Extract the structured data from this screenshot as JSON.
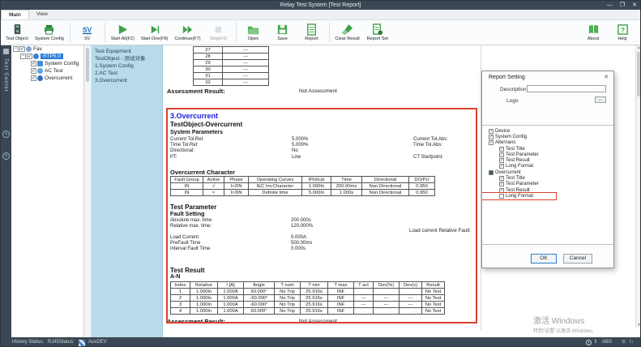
{
  "window": {
    "title": "Relay Test System  [Test Report]",
    "minimize": "—",
    "maximize": "❐",
    "close": "✕"
  },
  "ribbon": {
    "tabs": [
      {
        "label": "Main",
        "active": true
      },
      {
        "label": "View",
        "active": false
      }
    ],
    "groups": [
      [
        {
          "name": "test-object",
          "label": "Test Object"
        },
        {
          "name": "system-config",
          "label": "System Config"
        }
      ],
      [
        {
          "name": "sv",
          "label": "SV"
        }
      ],
      [
        {
          "name": "start-all",
          "label": "Start All(F2)"
        },
        {
          "name": "start-one",
          "label": "Start One(F8)"
        },
        {
          "name": "continue",
          "label": "Continue(F7)"
        },
        {
          "name": "stop",
          "label": "Stop(F6)",
          "disabled": true
        }
      ],
      [
        {
          "name": "open",
          "label": "Open"
        },
        {
          "name": "save",
          "label": "Save"
        },
        {
          "name": "report",
          "label": "Report"
        }
      ],
      [
        {
          "name": "clear-result",
          "label": "Clear Result"
        },
        {
          "name": "report-set",
          "label": "Report Set"
        }
      ]
    ],
    "right": [
      {
        "name": "about",
        "label": "About"
      },
      {
        "name": "help",
        "label": "Help"
      }
    ]
  },
  "side_strip": {
    "vertical_label": "Test Center"
  },
  "tree": {
    "root_label": "Fav",
    "project_label": "RTP5.0",
    "items": [
      "System Config",
      "AC Test",
      "Overcurrent"
    ]
  },
  "nav": {
    "items": [
      "Test Equipment",
      "TestObject - 测试对象",
      "1.System Config",
      "2.AC Test",
      "3.Overcurrent"
    ]
  },
  "report": {
    "continuation_table": {
      "rows": [
        [
          "27",
          "---"
        ],
        [
          "28",
          "---"
        ],
        [
          "29",
          "---"
        ],
        [
          "30",
          "---"
        ],
        [
          "31",
          "---"
        ],
        [
          "32",
          "---"
        ]
      ]
    },
    "assessment": {
      "label": "Assessment Result:",
      "value": "Not Assessment"
    },
    "overcurrent": {
      "heading": "3.Overcurrent",
      "subheading": "TestObject-Overcurrent",
      "system_parameters": {
        "title": "System Parameters",
        "rows": [
          {
            "label": "Current Tol.Rel:",
            "value": "5.000%",
            "label2": "Current Tol.Abs:"
          },
          {
            "label": "Time Tol.Rel:",
            "value": "5.000%",
            "label2": "Time Tol.Abs:"
          },
          {
            "label": "Directional:",
            "value": "No",
            "label2": ""
          },
          {
            "label": "PT:",
            "value": "Line",
            "label2": "CT Startpoint:"
          }
        ]
      },
      "character_table": {
        "title": "Overcurrent Character",
        "headers": [
          "Fault Group",
          "Active",
          "Phase",
          "Operating Curves",
          "IPickUp",
          "Time",
          "Directional",
          "DO/PU"
        ],
        "rows": [
          [
            "IN",
            "√",
            "I>2IN",
            "IEC Inv.Character",
            "1.000In",
            "200.00ms",
            "Non Directional",
            "0.950"
          ],
          [
            "IN",
            "×",
            "I>3IN",
            "Definite time",
            "5.000In",
            "1.000s",
            "Non Directional",
            "0.950"
          ]
        ]
      },
      "test_parameter": {
        "title": "Test Parameter",
        "fault_setting_title": "Fault Setting",
        "rows_a": [
          {
            "label": "Absolute max. time:",
            "value": "200.000s"
          },
          {
            "label": "Relative max. time:",
            "value": "120.000%"
          }
        ],
        "rows_b": [
          {
            "label": "Load Current",
            "value": "0.000A"
          },
          {
            "label": "PreFault Time",
            "value": "500.00ms"
          },
          {
            "label": "Interval Fault Time",
            "value": "0.000s"
          }
        ],
        "side_note": "Load current Relative Fault:"
      },
      "test_result": {
        "title": "Test Result",
        "group": "A-N",
        "headers": [
          "Index",
          "Relative",
          "I [A]",
          "Angle",
          "T nom",
          "T min",
          "T max",
          "T act",
          "Dev(%)",
          "Dev(s)",
          "Result"
        ],
        "rows": [
          [
            "1",
            "1.000In",
            "1.000A",
            "60.000°",
            "No Trip",
            "25.916s",
            "INF",
            "",
            "",
            "",
            "No Test"
          ],
          [
            "2",
            "1.000In",
            "1.000A",
            "-60.000°",
            "No Trip",
            "25.916s",
            "INF",
            "---",
            "---",
            "---",
            "No Test"
          ],
          [
            "3",
            "1.000In",
            "1.000A",
            "-60.000°",
            "No Trip",
            "25.916s",
            "INF",
            "---",
            "---",
            "---",
            "No Test"
          ],
          [
            "4",
            "1.000In",
            "1.000A",
            "60.000°",
            "No Trip",
            "25.916s",
            "INF",
            "",
            "",
            "",
            "No Test"
          ]
        ]
      }
    },
    "footer_assessment": {
      "label": "Assessment Result:",
      "value": "Not Assessment"
    }
  },
  "dialog": {
    "title": "Report Setting",
    "close": "✕",
    "description_label": "Description",
    "description_value": "",
    "logo_label": "Logo",
    "browse_label": "...",
    "tree": [
      {
        "label": "Device",
        "level": 0,
        "state": "checked"
      },
      {
        "label": "System Config",
        "level": 0,
        "state": "checked"
      },
      {
        "label": "Alternans",
        "level": 0,
        "state": "checked"
      },
      {
        "label": "Test Title",
        "level": 1,
        "state": "checked"
      },
      {
        "label": "Test Parameter",
        "level": 1,
        "state": "checked"
      },
      {
        "label": "Test Result",
        "level": 1,
        "state": "checked"
      },
      {
        "label": "Long Format",
        "level": 1,
        "state": "checked"
      },
      {
        "label": "Overcurrent",
        "level": 0,
        "state": "partial"
      },
      {
        "label": "Test Title",
        "level": 1,
        "state": "checked"
      },
      {
        "label": "Test Parameter",
        "level": 1,
        "state": "checked"
      },
      {
        "label": "Test Result",
        "level": 1,
        "state": "checked"
      },
      {
        "label": "Long Format",
        "level": 1,
        "state": "unchecked",
        "highlighted": true
      }
    ],
    "ok_label": "OK",
    "cancel_label": "Cancel"
  },
  "statusbar": {
    "history_label": "History Status:",
    "rj45_label": "RJ45Status:",
    "aux_label": "AuxDEV",
    "abs_label": "ABS",
    "pause_glyph": "‖"
  },
  "watermark": {
    "line1": "激活 Windows",
    "line2": "转到“设置”以激活 Windows。"
  }
}
